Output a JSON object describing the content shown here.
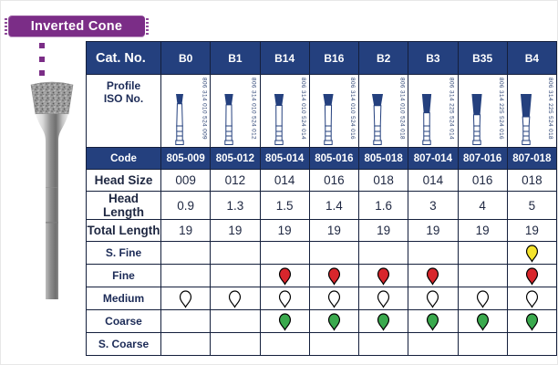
{
  "page": {
    "badge": "Inverted Cone"
  },
  "colors": {
    "navy": "#24407e",
    "purple": "#7b2d87",
    "border": "#141f3c",
    "grit_red": "#d8262c",
    "grit_yellow": "#f4e32c",
    "grit_green": "#3aa94d",
    "grit_white": "#ffffff"
  },
  "table": {
    "corner_label": "Cat. No.",
    "profile_label_lines": [
      "Profile",
      "ISO No."
    ],
    "row_labels": {
      "code": "Code",
      "head_size": "Head Size",
      "head_length": "Head Length",
      "total_length": "Total Length",
      "s_fine": "S. Fine",
      "fine": "Fine",
      "medium": "Medium",
      "coarse": "Coarse",
      "s_coarse": "S. Coarse"
    },
    "columns": [
      {
        "cat": "B0",
        "iso": "806 314 010 524 009",
        "code": "805-009",
        "head_size": "009",
        "head_length": "0.9",
        "total_length": "19",
        "grits": {
          "s_fine": "",
          "fine": "",
          "medium": "white",
          "coarse": "",
          "s_coarse": ""
        }
      },
      {
        "cat": "B1",
        "iso": "806 314 010 524 012",
        "code": "805-012",
        "head_size": "012",
        "head_length": "1.3",
        "total_length": "19",
        "grits": {
          "s_fine": "",
          "fine": "",
          "medium": "white",
          "coarse": "",
          "s_coarse": ""
        }
      },
      {
        "cat": "B14",
        "iso": "806 314 010 524 014",
        "code": "805-014",
        "head_size": "014",
        "head_length": "1.5",
        "total_length": "19",
        "grits": {
          "s_fine": "",
          "fine": "red",
          "medium": "white",
          "coarse": "green",
          "s_coarse": ""
        }
      },
      {
        "cat": "B16",
        "iso": "806 314 010 524 016",
        "code": "805-016",
        "head_size": "016",
        "head_length": "1.4",
        "total_length": "19",
        "grits": {
          "s_fine": "",
          "fine": "red",
          "medium": "white",
          "coarse": "green",
          "s_coarse": ""
        }
      },
      {
        "cat": "B2",
        "iso": "806 314 010 524 018",
        "code": "805-018",
        "head_size": "018",
        "head_length": "1.6",
        "total_length": "19",
        "grits": {
          "s_fine": "",
          "fine": "red",
          "medium": "white",
          "coarse": "green",
          "s_coarse": ""
        }
      },
      {
        "cat": "B3",
        "iso": "806 314 225 524 014",
        "code": "807-014",
        "head_size": "014",
        "head_length": "3",
        "total_length": "19",
        "grits": {
          "s_fine": "",
          "fine": "red",
          "medium": "white",
          "coarse": "green",
          "s_coarse": ""
        }
      },
      {
        "cat": "B35",
        "iso": "806 314 225 524 016",
        "code": "807-016",
        "head_size": "016",
        "head_length": "4",
        "total_length": "19",
        "grits": {
          "s_fine": "",
          "fine": "",
          "medium": "white",
          "coarse": "green",
          "s_coarse": ""
        }
      },
      {
        "cat": "B4",
        "iso": "806 314 225 524 018",
        "code": "807-018",
        "head_size": "018",
        "head_length": "5",
        "total_length": "19",
        "grits": {
          "s_fine": "yellow",
          "fine": "red",
          "medium": "white",
          "coarse": "green",
          "s_coarse": ""
        }
      }
    ]
  }
}
